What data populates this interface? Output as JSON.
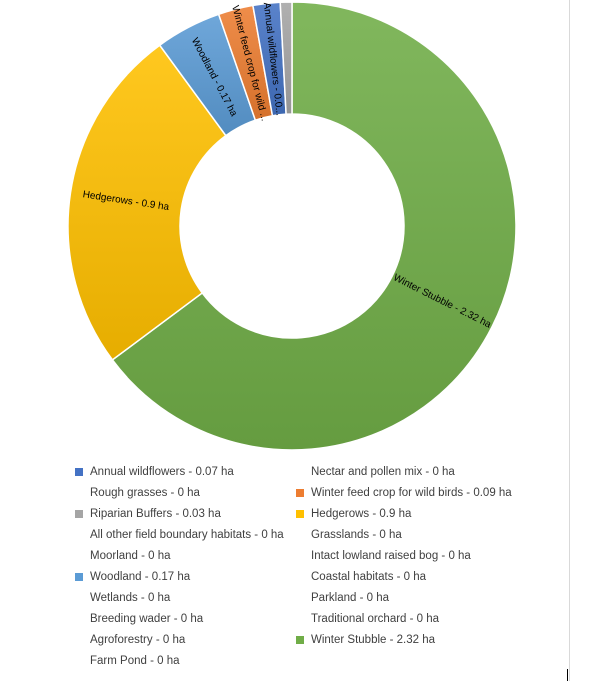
{
  "chart_data": {
    "type": "donut",
    "unit": "ha",
    "title": "",
    "legend_position": "bottom",
    "slices": [
      {
        "name": "Winter Stubble",
        "value": 2.32,
        "color": "#70ad47",
        "label": "Winter Stubble - 2.32 ha"
      },
      {
        "name": "Hedgerows",
        "value": 0.9,
        "color": "#ffc000",
        "label": "Hedgerows - 0.9 ha"
      },
      {
        "name": "Woodland",
        "value": 0.17,
        "color": "#5b9bd5",
        "label": "Woodland - 0.17 ha"
      },
      {
        "name": "Winter feed crop for wild birds",
        "value": 0.09,
        "color": "#ed7d31",
        "label": "Winter feed crop for wild ..."
      },
      {
        "name": "Annual wildflowers",
        "value": 0.07,
        "color": "#4472c4",
        "label": "Annual wildflowers - 0.0..."
      },
      {
        "name": "Riparian Buffers",
        "value": 0.03,
        "color": "#a5a5a5",
        "label": ""
      }
    ],
    "legend": [
      {
        "text": "Annual wildflowers - 0.07 ha",
        "color": "#4472c4"
      },
      {
        "text": "Nectar and pollen mix - 0 ha",
        "color": ""
      },
      {
        "text": "Rough grasses - 0 ha",
        "color": ""
      },
      {
        "text": "Winter feed crop for wild birds - 0.09 ha",
        "color": "#ed7d31"
      },
      {
        "text": "Riparian Buffers - 0.03 ha",
        "color": "#a5a5a5"
      },
      {
        "text": "Hedgerows - 0.9 ha",
        "color": "#ffc000"
      },
      {
        "text": "All other field boundary habitats - 0 ha",
        "color": ""
      },
      {
        "text": "Grasslands - 0 ha",
        "color": ""
      },
      {
        "text": "Moorland - 0 ha",
        "color": ""
      },
      {
        "text": "Intact lowland raised bog - 0 ha",
        "color": ""
      },
      {
        "text": "Woodland - 0.17 ha",
        "color": "#5b9bd5"
      },
      {
        "text": "Coastal habitats - 0 ha",
        "color": ""
      },
      {
        "text": "Wetlands - 0 ha",
        "color": ""
      },
      {
        "text": "Parkland - 0 ha",
        "color": ""
      },
      {
        "text": "Breeding wader - 0 ha",
        "color": ""
      },
      {
        "text": "Traditional orchard - 0 ha",
        "color": ""
      },
      {
        "text": "Agroforestry - 0 ha",
        "color": ""
      },
      {
        "text": "Winter Stubble - 2.32 ha",
        "color": "#70ad47"
      },
      {
        "text": "Farm Pond - 0 ha",
        "color": ""
      }
    ]
  }
}
